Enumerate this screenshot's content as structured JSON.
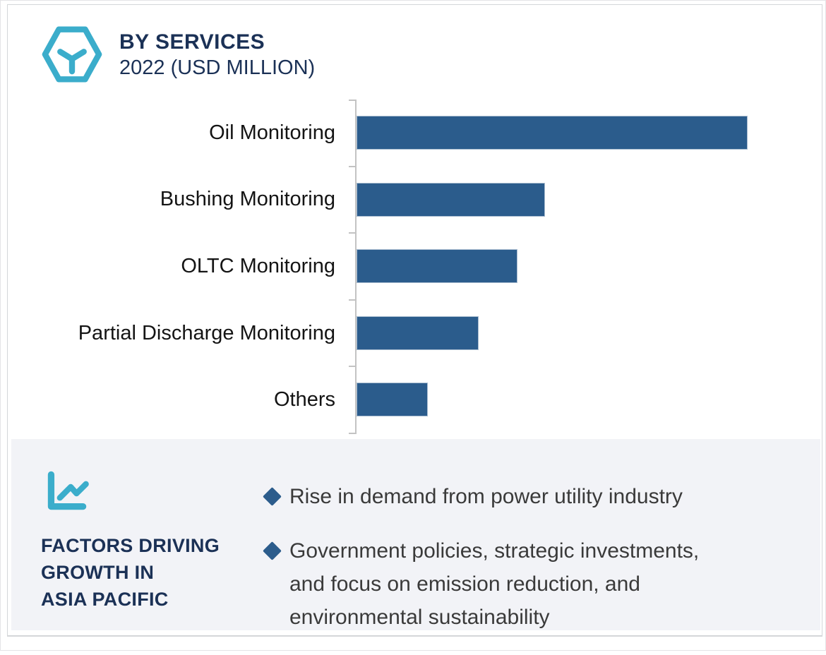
{
  "chart_data": {
    "type": "bar",
    "orientation": "horizontal",
    "title": "BY SERVICES",
    "subtitle": "2022 (USD MILLION)",
    "categories": [
      "Oil Monitoring",
      "Bushing Monitoring",
      "OLTC Monitoring",
      "Partial Discharge Monitoring",
      "Others"
    ],
    "values": [
      100,
      48,
      41,
      31,
      18
    ],
    "xlabel": "",
    "ylabel": "",
    "xlim": [
      0,
      100
    ],
    "grid": false,
    "legend": false,
    "bar_color": "#2B5C8C",
    "bar_border_color": "#AABDD0",
    "axis_color": "#C3C3C3"
  },
  "factors_panel": {
    "heading_lines": [
      "FACTORS DRIVING",
      "GROWTH IN",
      "ASIA PACIFIC"
    ],
    "bullets": [
      {
        "lines": [
          "Rise in demand from power utility industry"
        ]
      },
      {
        "lines": [
          "Government policies, strategic investments,",
          "and focus on emission reduction, and",
          "environmental sustainability"
        ]
      }
    ]
  },
  "colors": {
    "accent_teal": "#3BADCB",
    "navy_text": "#1B3156",
    "bullet_diamond": "#2C5C8C",
    "panel_background": "#F2F3F7",
    "body_text": "#3A3A3A"
  }
}
